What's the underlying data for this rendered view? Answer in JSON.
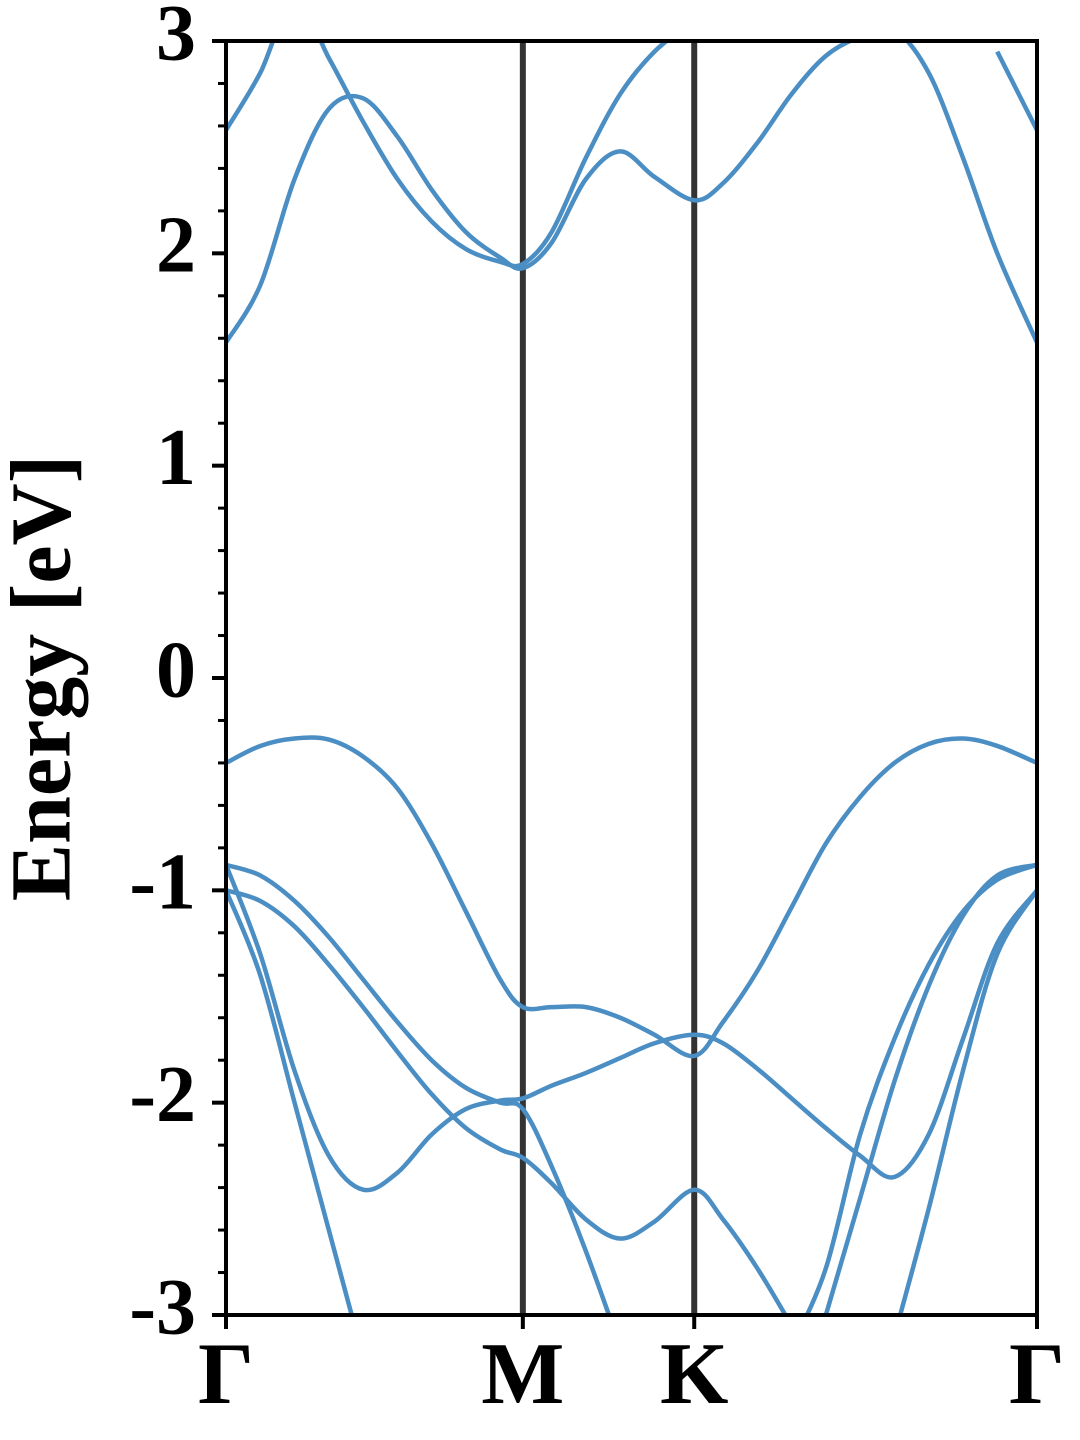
{
  "chart_data": {
    "type": "line",
    "ylabel": "Energy [eV]",
    "color": "#4b8ec4",
    "xgrid": true,
    "x": [
      0,
      0.1,
      0.2,
      0.3,
      0.4,
      0.5,
      0.6,
      0.7,
      0.8,
      0.866,
      0.95,
      1.05,
      1.15,
      1.25,
      1.366,
      1.45,
      1.55,
      1.65,
      1.75,
      1.85,
      1.95,
      2.05,
      2.15,
      2.25,
      2.366
    ],
    "series": [
      {
        "values": [
          -0.4,
          -0.32,
          -0.285,
          -0.29,
          -0.37,
          -0.52,
          -0.78,
          -1.1,
          -1.42,
          -1.55,
          -1.55,
          -1.55,
          -1.6,
          -1.68,
          -1.78,
          -1.62,
          -1.38,
          -1.08,
          -0.78,
          -0.56,
          -0.4,
          -0.31,
          -0.285,
          -0.32,
          -0.4
        ]
      },
      {
        "values": [
          -0.88,
          -0.93,
          -1.05,
          -1.22,
          -1.42,
          -1.62,
          -1.8,
          -1.93,
          -2.0,
          -2.03,
          -2.3,
          -2.7,
          -3.15,
          null,
          null,
          null,
          null,
          -3.15,
          -2.78,
          -2.15,
          -1.7,
          -1.35,
          -1.1,
          -0.95,
          -0.88
        ]
      },
      {
        "values": [
          -1.0,
          -1.05,
          -1.17,
          -1.35,
          -1.55,
          -1.76,
          -1.96,
          -2.12,
          -2.22,
          -2.26,
          -2.38,
          -2.55,
          -2.64,
          -2.56,
          -2.41,
          -2.55,
          -2.78,
          -3.05,
          null,
          null,
          -3.1,
          -2.5,
          -1.85,
          -1.3,
          -1.0
        ]
      },
      {
        "values": [
          -0.88,
          -1.3,
          -1.85,
          -2.25,
          -2.41,
          -2.33,
          -2.15,
          -2.03,
          -1.99,
          -1.98,
          -1.92,
          -1.86,
          -1.79,
          -1.72,
          -1.68,
          -1.72,
          -1.84,
          -1.98,
          -2.12,
          -2.25,
          -2.35,
          -2.15,
          -1.7,
          -1.25,
          -1.0
        ]
      },
      {
        "values": [
          -1.0,
          -1.4,
          -2.0,
          -2.6,
          -3.2,
          null,
          null,
          null,
          null,
          null,
          null,
          null,
          null,
          null,
          null,
          null,
          null,
          null,
          -3.0,
          -2.45,
          -1.9,
          -1.45,
          -1.12,
          -0.93,
          -0.88
        ]
      },
      {
        "values": [
          1.58,
          1.85,
          2.35,
          2.68,
          2.73,
          2.55,
          2.3,
          2.1,
          1.98,
          1.93,
          2.05,
          2.35,
          2.48,
          2.36,
          2.25,
          2.33,
          2.52,
          2.75,
          2.93,
          3.02,
          3.05,
          2.85,
          2.45,
          2.0,
          1.58
        ]
      },
      {
        "values": [
          2.58,
          2.85,
          3.2,
          2.92,
          2.62,
          2.35,
          2.15,
          2.02,
          1.96,
          1.95,
          2.1,
          2.45,
          2.75,
          2.95,
          3.1,
          null,
          null,
          null,
          null,
          null,
          null,
          null,
          null,
          2.95,
          2.58
        ]
      }
    ],
    "xlim": [
      0,
      2.366
    ],
    "xticks": [
      {
        "value": 0,
        "label": "Γ"
      },
      {
        "value": 0.866,
        "label": "M"
      },
      {
        "value": 1.366,
        "label": "K"
      },
      {
        "value": 2.366,
        "label": "Γ"
      }
    ],
    "ylim": [
      -3,
      3
    ],
    "yticks": [
      -3,
      -2,
      -1,
      0,
      1,
      2,
      3
    ],
    "yminorticks": [
      -2.8,
      -2.6,
      -2.4,
      -2.2,
      -1.8,
      -1.6,
      -1.4,
      -1.2,
      -0.8,
      -0.6,
      -0.4,
      -0.2,
      0.2,
      0.4,
      0.6,
      0.8,
      1.2,
      1.4,
      1.6,
      1.8,
      2.2,
      2.4,
      2.6,
      2.8
    ]
  }
}
